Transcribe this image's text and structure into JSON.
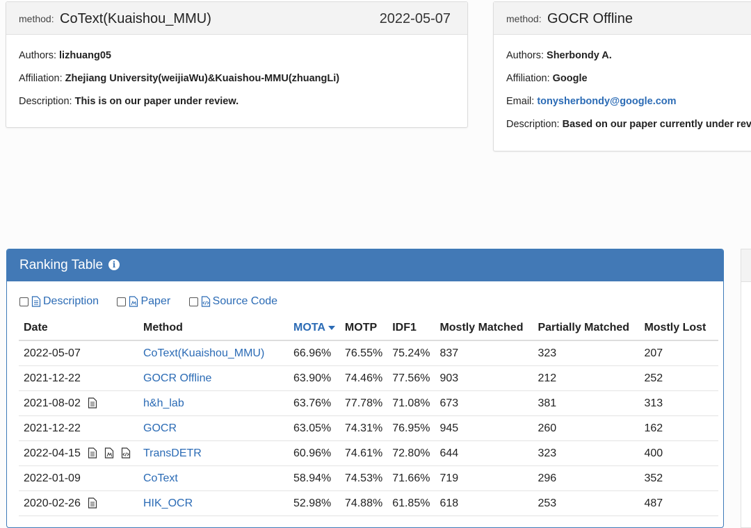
{
  "cards": [
    {
      "method_label": "method:",
      "method_name": "CoText(Kuaishou_MMU)",
      "date": "2022-05-07",
      "authors_label": "Authors:",
      "authors": "lizhuang05",
      "affiliation_label": "Affiliation:",
      "affiliation": "Zhejiang University(weijiaWu)&Kuaishou-MMU(zhuangLi)",
      "description_label": "Description:",
      "description": "This is on our paper under review."
    },
    {
      "method_label": "method:",
      "method_name": "GOCR Offline",
      "authors_label": "Authors:",
      "authors": "Sherbondy A.",
      "affiliation_label": "Affiliation:",
      "affiliation": "Google",
      "email_label": "Email:",
      "email": "tonysherbondy@google.com",
      "description_label": "Description:",
      "description": "Based on our paper currently under rev"
    }
  ],
  "ranking": {
    "title": "Ranking Table",
    "filters": [
      {
        "label": "Description",
        "icon": "document-icon"
      },
      {
        "label": "Paper",
        "icon": "pdf-icon"
      },
      {
        "label": "Source Code",
        "icon": "code-file-icon"
      }
    ],
    "columns": [
      "Date",
      "Method",
      "MOTA",
      "MOTP",
      "IDF1",
      "Mostly Matched",
      "Partially Matched",
      "Mostly Lost"
    ],
    "sorted_column": "MOTA",
    "rows": [
      {
        "date": "2022-05-07",
        "icons": [],
        "method": "CoText(Kuaishou_MMU)",
        "mota": "66.96%",
        "motp": "76.55%",
        "idf1": "75.24%",
        "mm": "837",
        "pm": "323",
        "ml": "207"
      },
      {
        "date": "2021-12-22",
        "icons": [],
        "method": "GOCR Offline",
        "mota": "63.90%",
        "motp": "74.46%",
        "idf1": "77.56%",
        "mm": "903",
        "pm": "212",
        "ml": "252"
      },
      {
        "date": "2021-08-02",
        "icons": [
          "document-icon"
        ],
        "method": "h&h_lab",
        "mota": "63.76%",
        "motp": "77.78%",
        "idf1": "71.08%",
        "mm": "673",
        "pm": "381",
        "ml": "313"
      },
      {
        "date": "2021-12-22",
        "icons": [],
        "method": "GOCR",
        "mota": "63.05%",
        "motp": "74.31%",
        "idf1": "76.95%",
        "mm": "945",
        "pm": "260",
        "ml": "162"
      },
      {
        "date": "2022-04-15",
        "icons": [
          "document-icon",
          "pdf-icon",
          "code-file-icon"
        ],
        "method": "TransDETR",
        "mota": "60.96%",
        "motp": "74.61%",
        "idf1": "72.80%",
        "mm": "644",
        "pm": "323",
        "ml": "400"
      },
      {
        "date": "2022-01-09",
        "icons": [],
        "method": "CoText",
        "mota": "58.94%",
        "motp": "74.53%",
        "idf1": "71.66%",
        "mm": "719",
        "pm": "296",
        "ml": "352"
      },
      {
        "date": "2020-02-26",
        "icons": [
          "document-icon"
        ],
        "method": "HIK_OCR",
        "mota": "52.98%",
        "motp": "74.88%",
        "idf1": "61.85%",
        "mm": "618",
        "pm": "253",
        "ml": "487"
      }
    ]
  },
  "colors": {
    "accent": "#4279b6",
    "link": "#2b6bb5"
  }
}
